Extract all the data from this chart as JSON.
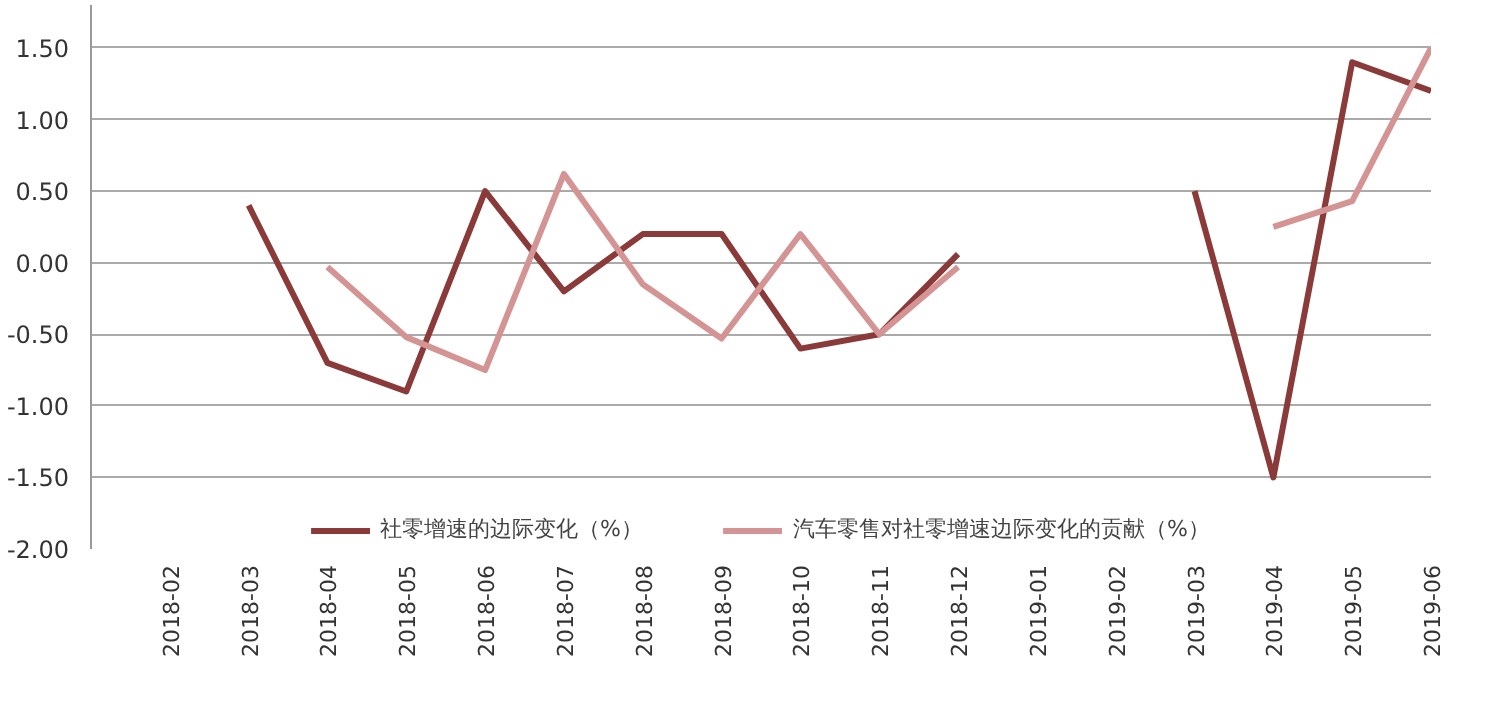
{
  "chart_data": {
    "type": "line",
    "categories": [
      "2018-02",
      "2018-03",
      "2018-04",
      "2018-05",
      "2018-06",
      "2018-07",
      "2018-08",
      "2018-09",
      "2018-10",
      "2018-11",
      "2018-12",
      "2019-01",
      "2019-02",
      "2019-03",
      "2019-04",
      "2019-05",
      "2019-06"
    ],
    "series": [
      {
        "name": "社零增速的边际变化（%）",
        "color": "#8b3a3a",
        "values": [
          null,
          0.4,
          -0.7,
          -0.9,
          0.5,
          -0.2,
          0.2,
          0.2,
          -0.6,
          -0.5,
          0.06,
          null,
          null,
          0.5,
          -1.5,
          1.4,
          1.2
        ]
      },
      {
        "name": "汽车零售对社零增速边际变化的贡献（%）",
        "color": "#d49494",
        "values": [
          null,
          null,
          -0.03,
          -0.52,
          -0.75,
          0.62,
          -0.15,
          -0.53,
          0.2,
          -0.5,
          -0.03,
          null,
          null,
          null,
          0.25,
          0.43,
          1.5
        ]
      }
    ],
    "ylim": [
      -2.0,
      1.8
    ],
    "yticks": [
      {
        "value": -2.0,
        "label": "-2.00"
      },
      {
        "value": -1.5,
        "label": "-1.50"
      },
      {
        "value": -1.0,
        "label": "-1.00"
      },
      {
        "value": -0.5,
        "label": "-0.50"
      },
      {
        "value": 0.0,
        "label": "0.00"
      },
      {
        "value": 0.5,
        "label": "0.50"
      },
      {
        "value": 1.0,
        "label": "1.00"
      },
      {
        "value": 1.5,
        "label": "1.50"
      }
    ],
    "grid": "y",
    "legend": "bottom",
    "marker": "none",
    "line_style": "solid"
  }
}
